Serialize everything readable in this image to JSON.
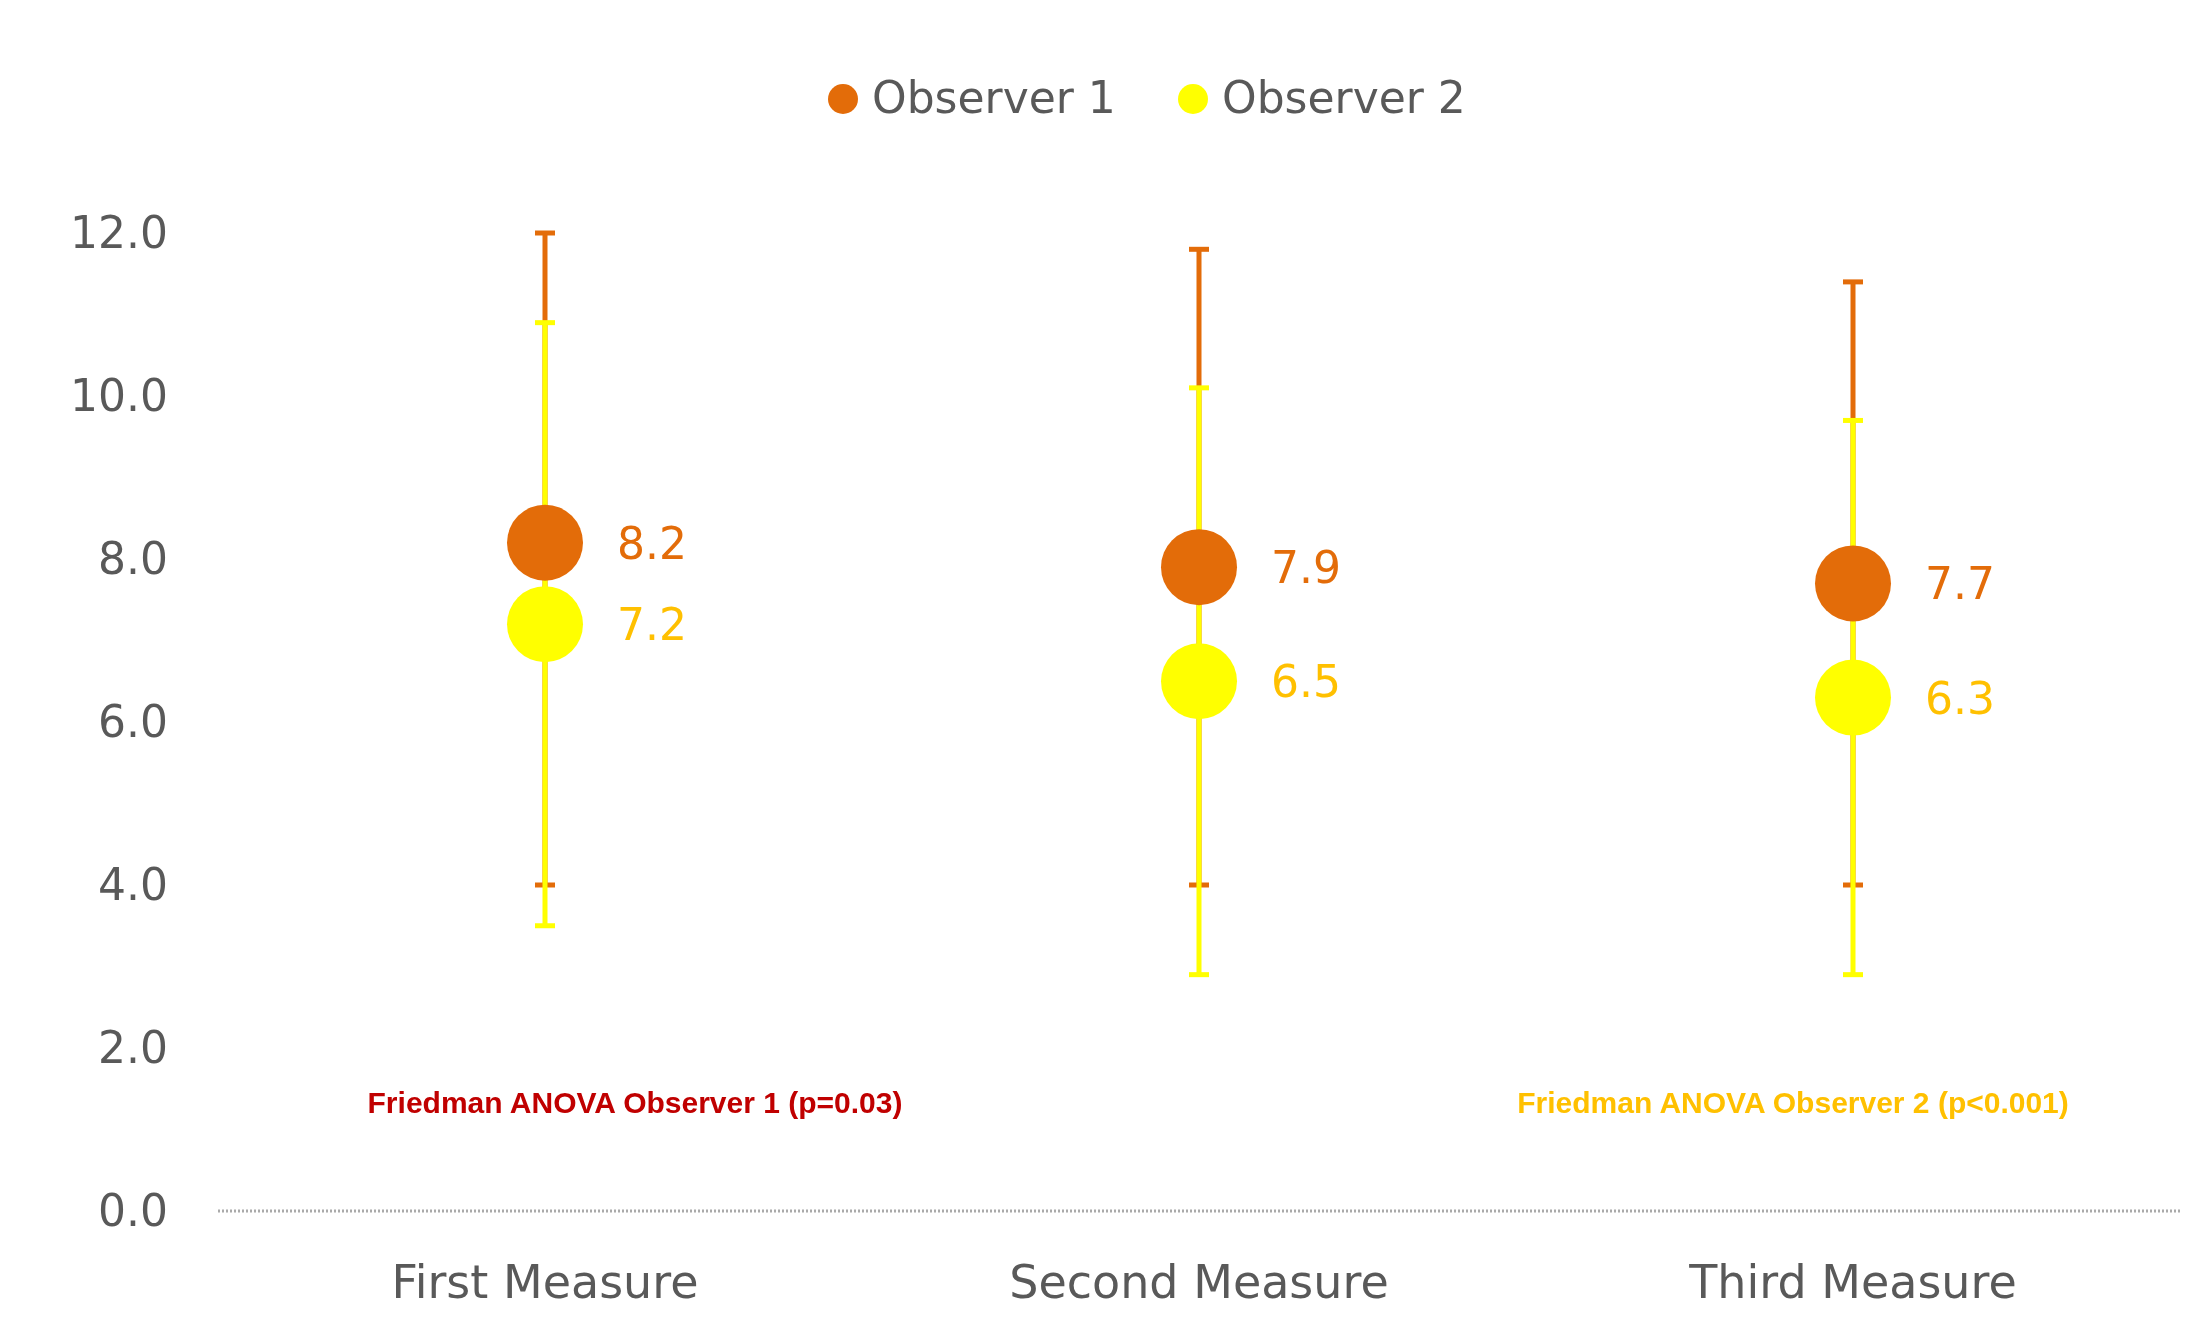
{
  "chart_data": {
    "type": "scatter",
    "categories": [
      "First Measure",
      "Second Measure",
      "Third Measure"
    ],
    "series": [
      {
        "name": "Observer 1",
        "color": "#e36c09",
        "values": [
          8.2,
          7.9,
          7.7
        ],
        "errors": [
          [
            4.0,
            12.0
          ],
          [
            4.0,
            11.8
          ],
          [
            4.0,
            11.4
          ]
        ]
      },
      {
        "name": "Observer 2",
        "color": "#ffff00",
        "values": [
          7.2,
          6.5,
          6.3
        ],
        "errors": [
          [
            3.5,
            10.9
          ],
          [
            2.9,
            10.1
          ],
          [
            2.9,
            9.7
          ]
        ]
      }
    ],
    "ylim": [
      0,
      12
    ],
    "yticks": [
      {
        "value": 0,
        "label": "0.0"
      },
      {
        "value": 2,
        "label": "2.0"
      },
      {
        "value": 4,
        "label": "4.0"
      },
      {
        "value": 6,
        "label": "6.0"
      },
      {
        "value": 8,
        "label": "8.0"
      },
      {
        "value": 10,
        "label": "10.0"
      },
      {
        "value": 12,
        "label": "12.0"
      }
    ],
    "data_labels": true,
    "legend": "top",
    "marker": "circle",
    "grid": false,
    "annotations": [
      "Friedman ANOVA Observer 1 (p=0.03)",
      "Friedman ANOVA Observer 2 (p<0.001)"
    ]
  }
}
